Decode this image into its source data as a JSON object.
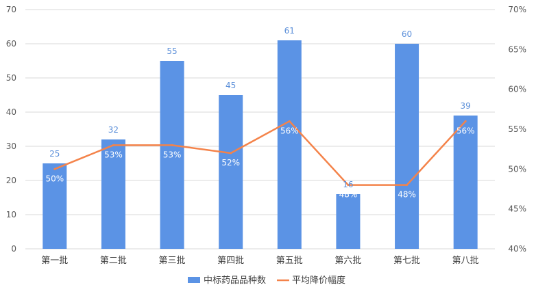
{
  "chart_data": {
    "type": "bar",
    "categories": [
      "第一批",
      "第二批",
      "第三批",
      "第四批",
      "第五批",
      "第六批",
      "第七批",
      "第八批"
    ],
    "series": [
      {
        "name": "中标药品品种数",
        "type": "bar",
        "axis": "left",
        "values": [
          25,
          32,
          55,
          45,
          61,
          16,
          60,
          39
        ],
        "labels": [
          "25",
          "32",
          "55",
          "45",
          "61",
          "16",
          "60",
          "39"
        ],
        "color": "#5B93E5"
      },
      {
        "name": "平均降价幅度",
        "type": "line",
        "axis": "right",
        "values": [
          0.5,
          0.53,
          0.53,
          0.52,
          0.56,
          0.48,
          0.48,
          0.56
        ],
        "labels": [
          "50%",
          "53%",
          "53%",
          "52%",
          "56%",
          "48%",
          "48%",
          "56%"
        ],
        "color": "#F4834A"
      }
    ],
    "y_left": {
      "min": 0,
      "max": 70,
      "step": 10,
      "ticks": [
        "0",
        "10",
        "20",
        "30",
        "40",
        "50",
        "60",
        "70"
      ]
    },
    "y_right": {
      "min": 0.4,
      "max": 0.7,
      "step": 0.05,
      "ticks": [
        "40%",
        "45%",
        "50%",
        "55%",
        "60%",
        "65%",
        "70%"
      ]
    },
    "grid": "horizontal",
    "legend": "bottom-center",
    "colors": {
      "grid": "#D9D9D9",
      "bar_label": "#5B8FD9"
    }
  }
}
